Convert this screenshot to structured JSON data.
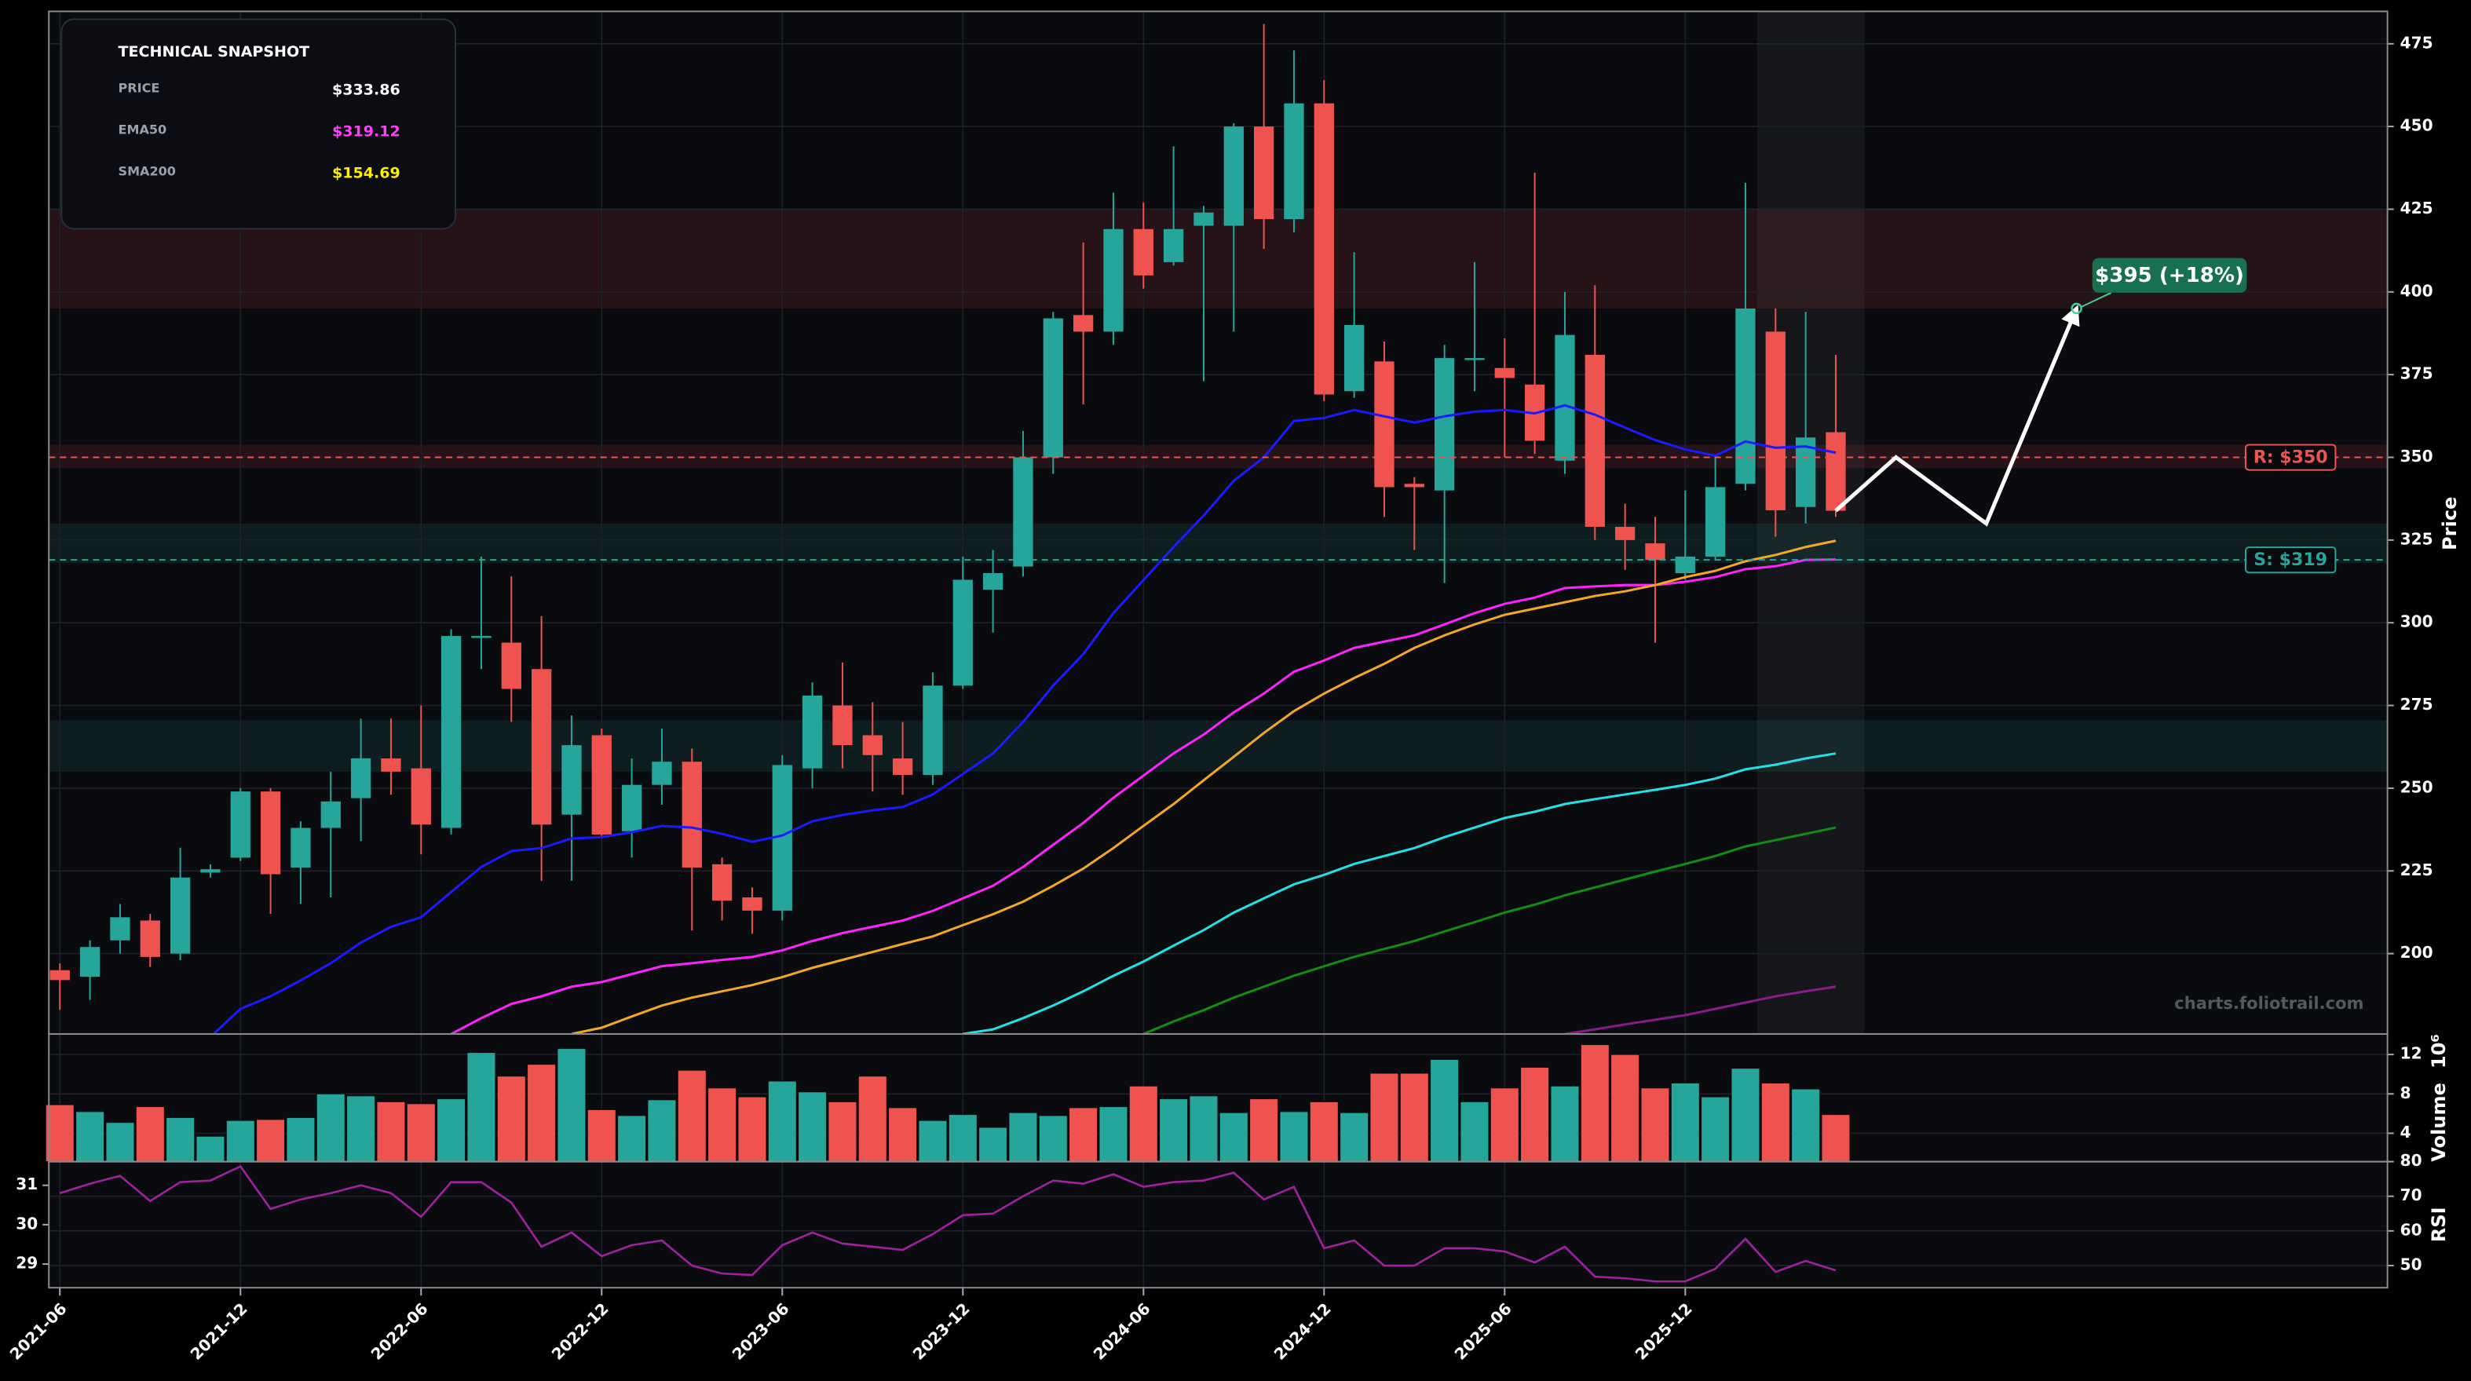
{
  "chart_data": {
    "type": "candlestick",
    "up_color": "#26a69a",
    "down_color": "#ef5350",
    "x": [
      "2021-06",
      "2021-07",
      "2021-08",
      "2021-09",
      "2021-10",
      "2021-11",
      "2021-12",
      "2022-01",
      "2022-02",
      "2022-03",
      "2022-04",
      "2022-05",
      "2022-06",
      "2022-07",
      "2022-08",
      "2022-09",
      "2022-10",
      "2022-11",
      "2022-12",
      "2023-01",
      "2023-02",
      "2023-03",
      "2023-04",
      "2023-05",
      "2023-06",
      "2023-07",
      "2023-08",
      "2023-09",
      "2023-10",
      "2023-11",
      "2023-12",
      "2024-01",
      "2024-02",
      "2024-03",
      "2024-04",
      "2024-05",
      "2024-06",
      "2024-07",
      "2024-08",
      "2024-09",
      "2024-10",
      "2024-11",
      "2024-12",
      "2025-01",
      "2025-02",
      "2025-03",
      "2025-04",
      "2025-05",
      "2025-06",
      "2025-07",
      "2025-08",
      "2025-09",
      "2025-10",
      "2025-11",
      "2025-12",
      "2026-01",
      "2026-02",
      "2026-03",
      "2026-04",
      "2026-05"
    ],
    "open": [
      195,
      193,
      204,
      210,
      200,
      224.5,
      229,
      249,
      226,
      238,
      247,
      259,
      256,
      238,
      295.5,
      294,
      286,
      242,
      266,
      237,
      251,
      258,
      227,
      217,
      213,
      256,
      275,
      266,
      259,
      254,
      281,
      310,
      317,
      350,
      393,
      388,
      419,
      409,
      420,
      420,
      450,
      422,
      457,
      370,
      379,
      342,
      340,
      379.5,
      377,
      372,
      349,
      381,
      329,
      324,
      315,
      320,
      342,
      388,
      335,
      357.6
    ],
    "high": [
      197,
      204,
      215,
      212,
      232,
      227,
      250,
      250,
      240,
      255,
      271,
      271,
      275,
      298,
      320,
      314,
      302,
      272,
      268,
      259,
      268,
      262,
      229,
      220,
      260,
      282,
      288,
      276,
      270,
      285,
      320,
      322,
      358,
      394,
      415,
      430,
      427,
      444,
      426,
      451,
      481,
      473,
      464,
      412,
      385,
      344,
      384,
      409,
      386,
      436,
      400,
      402,
      336,
      332,
      340,
      350,
      433,
      395,
      394,
      381
    ],
    "low": [
      183,
      186,
      200,
      196,
      198,
      223,
      228,
      212,
      215,
      217,
      234,
      248,
      230,
      236,
      286,
      270,
      222,
      222,
      235,
      229,
      245,
      207,
      210,
      206,
      210,
      250,
      256,
      249,
      248,
      251,
      280,
      297,
      314,
      345,
      366,
      384,
      401,
      408,
      373,
      388,
      413,
      418,
      367,
      368,
      332,
      322,
      312,
      370,
      350,
      351,
      345,
      325,
      316,
      294,
      313,
      319,
      340,
      326,
      330,
      332
    ],
    "close": [
      192,
      202,
      211,
      199,
      223,
      225.5,
      249,
      224,
      238,
      246,
      259,
      255,
      239,
      296,
      296,
      280,
      239,
      263,
      236,
      251,
      258,
      226,
      216,
      213,
      257,
      278,
      263,
      260,
      254,
      281,
      313,
      315,
      350,
      392,
      388,
      419,
      405,
      419,
      424,
      450,
      422,
      457,
      369,
      390,
      341,
      341,
      380,
      380,
      374,
      355,
      387,
      329,
      325,
      319,
      320,
      341,
      395,
      334,
      356,
      333.86
    ],
    "xlim": [
      "2021-06",
      "2027-10"
    ],
    "xticks": [
      "2021-06",
      "2021-12",
      "2022-06",
      "2022-12",
      "2023-06",
      "2023-12",
      "2024-06",
      "2024-12",
      "2025-06",
      "2025-12"
    ],
    "ylim": [
      175.7,
      484.8
    ],
    "yticks": [
      200,
      225,
      250,
      275,
      300,
      325,
      350,
      375,
      400,
      425,
      450,
      475
    ],
    "ylabel": "Price",
    "grid": true,
    "series": [
      {
        "color": "#1a1aff",
        "values": [
          null,
          null,
          null,
          null,
          null,
          174.8,
          183.3,
          187.1,
          191.9,
          197.1,
          203.3,
          208.1,
          211.0,
          218.6,
          226.2,
          231.0,
          231.9,
          234.8,
          235.2,
          236.7,
          238.6,
          238.1,
          236.2,
          233.8,
          235.7,
          240.0,
          241.9,
          243.3,
          244.3,
          248.1,
          254.3,
          260.5,
          270.0,
          281.0,
          290.5,
          302.9,
          312.9,
          322.9,
          332.4,
          342.9,
          350,
          361,
          361.9,
          364.3,
          362.4,
          360.5,
          362.4,
          363.8,
          364.3,
          363.3,
          365.7,
          362.9,
          359,
          355.2,
          352.4,
          350.5,
          354.8,
          352.9,
          353.3,
          351.4
        ]
      },
      {
        "color": "#ff22ff",
        "values": [
          null,
          null,
          null,
          null,
          null,
          null,
          null,
          null,
          null,
          null,
          null,
          null,
          null,
          175.7,
          180.5,
          184.8,
          187.1,
          190.0,
          191.4,
          193.8,
          196.2,
          197.1,
          198.1,
          199.0,
          201.0,
          203.8,
          206.2,
          208.1,
          210.0,
          212.9,
          216.7,
          220.5,
          226.2,
          232.9,
          239.5,
          247.1,
          253.8,
          260.5,
          266.2,
          272.9,
          278.6,
          285.2,
          288.6,
          292.4,
          294.3,
          296.2,
          299.5,
          302.9,
          305.7,
          307.6,
          310.5,
          311.0,
          311.4,
          311.4,
          312.4,
          313.8,
          316.2,
          317.1,
          319.0,
          319.12
        ]
      },
      {
        "color": "#f5a623",
        "values": [
          null,
          null,
          null,
          null,
          null,
          null,
          null,
          null,
          null,
          null,
          null,
          null,
          null,
          null,
          null,
          null,
          null,
          175.7,
          177.6,
          181.0,
          184.3,
          186.7,
          188.6,
          190.5,
          192.9,
          195.7,
          198.1,
          200.5,
          202.9,
          205.2,
          208.6,
          211.9,
          215.7,
          220.5,
          225.7,
          231.9,
          238.6,
          245.2,
          252.4,
          259.5,
          266.7,
          273.3,
          278.6,
          283.3,
          287.6,
          292.4,
          296.2,
          299.5,
          302.4,
          304.3,
          306.2,
          308.1,
          309.5,
          311.4,
          313.8,
          315.7,
          318.6,
          320.5,
          322.9,
          324.8
        ]
      },
      {
        "color": "#22e0e8",
        "values": [
          null,
          null,
          null,
          null,
          null,
          null,
          null,
          null,
          null,
          null,
          null,
          null,
          null,
          null,
          null,
          null,
          null,
          null,
          null,
          null,
          null,
          null,
          null,
          null,
          null,
          null,
          null,
          null,
          null,
          null,
          175.7,
          177.1,
          180.5,
          184.3,
          188.6,
          193.3,
          197.6,
          202.4,
          207.1,
          212.4,
          216.7,
          220.95,
          223.8,
          227.1,
          229.5,
          231.9,
          235.2,
          238.1,
          241.0,
          242.9,
          245.2,
          246.7,
          248.1,
          249.5,
          251.0,
          252.9,
          255.7,
          257.1,
          259.0,
          260.5
        ]
      },
      {
        "color": "#0f8f0f",
        "values": [
          null,
          null,
          null,
          null,
          null,
          null,
          null,
          null,
          null,
          null,
          null,
          null,
          null,
          null,
          null,
          null,
          null,
          null,
          null,
          null,
          null,
          null,
          null,
          null,
          null,
          null,
          null,
          null,
          null,
          null,
          null,
          null,
          null,
          null,
          null,
          null,
          175.7,
          179.5,
          182.9,
          186.7,
          190.0,
          193.3,
          196.2,
          199.0,
          201.4,
          203.8,
          206.7,
          209.5,
          212.4,
          214.8,
          217.6,
          220.0,
          222.4,
          224.8,
          227.1,
          229.5,
          232.4,
          234.3,
          236.2,
          238.1
        ]
      },
      {
        "color": "#8b1a8b",
        "values": [
          null,
          null,
          null,
          null,
          null,
          null,
          null,
          null,
          null,
          null,
          null,
          null,
          null,
          null,
          null,
          null,
          null,
          null,
          null,
          null,
          null,
          null,
          null,
          null,
          null,
          null,
          null,
          null,
          null,
          null,
          null,
          null,
          null,
          null,
          null,
          null,
          null,
          null,
          null,
          null,
          null,
          null,
          null,
          null,
          null,
          null,
          null,
          null,
          null,
          null,
          175.7,
          177.1,
          178.6,
          180.0,
          181.4,
          183.3,
          185.2,
          187.1,
          188.6,
          190.0
        ]
      }
    ],
    "zones": [
      {
        "ymin": 395,
        "ymax": 425,
        "color": "#ef5350"
      },
      {
        "ymin": 346.7,
        "ymax": 353.8,
        "color": "#ef5350"
      },
      {
        "ymin": 318,
        "ymax": 330,
        "color": "#26a69a"
      },
      {
        "ymin": 255,
        "ymax": 270.5,
        "color": "#26a69a"
      }
    ],
    "levels": [
      {
        "value": 350,
        "label": "R: $350",
        "color": "#ef5350"
      },
      {
        "value": 319,
        "label": "S: $319",
        "color": "#26a69a"
      }
    ],
    "projection": {
      "x": [
        "2026-05",
        "2026-07",
        "2026-10",
        "2027-01"
      ],
      "values": [
        333.86,
        350,
        330,
        395
      ]
    },
    "target": {
      "x": "2027-01",
      "value": 395,
      "label": "$395 (+18%)"
    },
    "watermark": "charts.foliotrail.com",
    "snapshot": {
      "title": "TECHNICAL SNAPSHOT",
      "rows": [
        {
          "label": "PRICE",
          "value": "$333.86",
          "color": "#ffffff"
        },
        {
          "label": "EMA50",
          "value": "$319.12",
          "color": "#ff40ff"
        },
        {
          "label": "SMA200",
          "value": "$154.69",
          "color": "#ffee00"
        }
      ]
    },
    "volume": {
      "values": [
        6.9,
        6.2,
        5.1,
        6.7,
        5.6,
        3.7,
        5.3,
        5.4,
        5.6,
        8.0,
        7.8,
        7.2,
        7.0,
        7.5,
        12.2,
        9.8,
        11.0,
        12.6,
        6.4,
        5.8,
        7.4,
        10.4,
        8.6,
        7.7,
        9.3,
        8.2,
        7.2,
        9.8,
        6.6,
        5.3,
        5.9,
        4.6,
        6.1,
        5.8,
        6.6,
        6.7,
        8.8,
        7.5,
        7.8,
        6.1,
        7.5,
        6.2,
        7.2,
        6.1,
        10.1,
        10.1,
        11.5,
        7.2,
        8.6,
        10.7,
        8.8,
        13.0,
        12.0,
        8.6,
        9.1,
        7.7,
        10.6,
        9.1,
        8.5,
        5.9
      ],
      "ylim": [
        1.12,
        14.08
      ],
      "yticks": [
        4,
        8,
        12
      ],
      "ylabel": "Volume",
      "offset_label": "10⁶"
    },
    "rsi": {
      "values": [
        30.8,
        31.04,
        31.24,
        30.6,
        31.08,
        31.12,
        31.48,
        30.4,
        30.64,
        30.8,
        31.0,
        30.8,
        30.2,
        31.08,
        31.08,
        30.56,
        29.44,
        29.8,
        29.2,
        29.48,
        29.6,
        28.96,
        28.76,
        28.72,
        29.48,
        29.8,
        29.52,
        29.44,
        29.36,
        29.76,
        30.24,
        30.28,
        30.72,
        31.12,
        31.04,
        31.28,
        30.96,
        31.08,
        31.12,
        31.32,
        30.64,
        30.96,
        29.4,
        29.6,
        28.96,
        28.96,
        29.4,
        29.4,
        29.32,
        29.04,
        29.44,
        28.68,
        28.64,
        28.56,
        28.56,
        28.88,
        29.64,
        28.8,
        29.08,
        28.84
      ],
      "color": "#a020a0",
      "ylim": [
        28.4,
        31.6
      ],
      "yticks": [
        29,
        30,
        31
      ],
      "y2lim": [
        43.6,
        80
      ],
      "y2ticks": [
        50,
        60,
        70,
        80
      ],
      "ylabel": "RSI"
    }
  }
}
